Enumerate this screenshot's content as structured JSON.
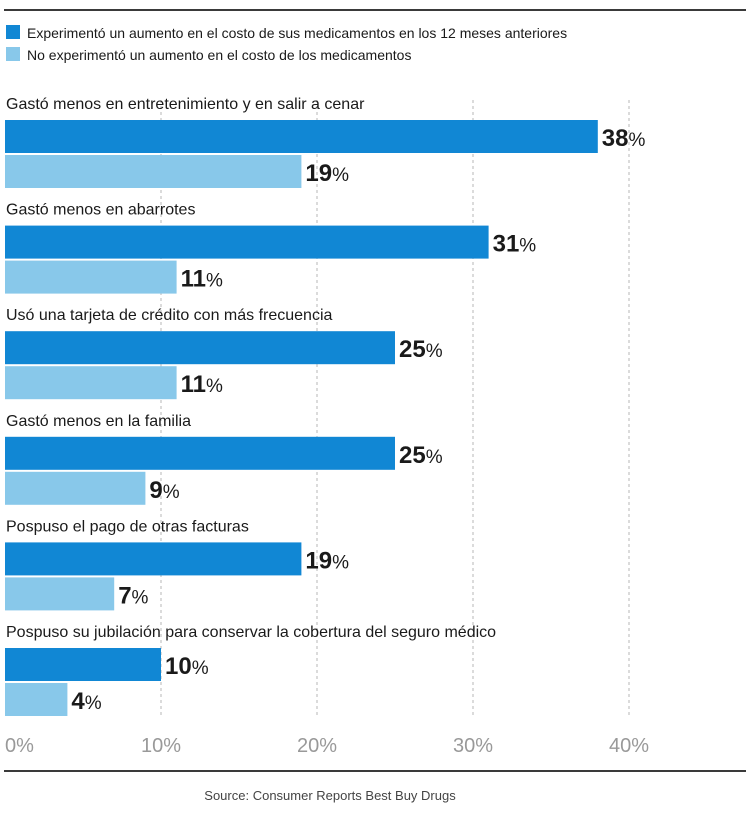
{
  "colors": {
    "series1": "#1187d4",
    "series2": "#88c8ea",
    "grid": "#cfcfcf",
    "rule": "#3a3a3a",
    "tick_text": "#999999"
  },
  "source": "Source: Consumer Reports Best Buy Drugs",
  "chart_data": {
    "type": "bar",
    "orientation": "horizontal",
    "categories": [
      "Gastó menos en entretenimiento y en salir a cenar",
      "Gastó menos en abarrotes",
      "Usó una tarjeta de crédito con más frecuencia",
      "Gastó menos en la familia",
      "Pospuso el pago de otras facturas",
      "Pospuso su jubilación para conservar la cobertura del seguro médico"
    ],
    "series": [
      {
        "name": "Experimentó un aumento en el costo de sus medicamentos en los 12 meses anteriores",
        "values": [
          38,
          31,
          25,
          25,
          19,
          10
        ]
      },
      {
        "name": "No experimentó un aumento en el costo de los medicamentos",
        "values": [
          19,
          11,
          11,
          9,
          7,
          4
        ]
      }
    ],
    "value_suffix": "%",
    "xlim": [
      0,
      40
    ],
    "xticks": [
      "0%",
      "10%",
      "20%",
      "30%",
      "40%"
    ],
    "grid": "vertical dashed",
    "legend_position": "top-left"
  }
}
